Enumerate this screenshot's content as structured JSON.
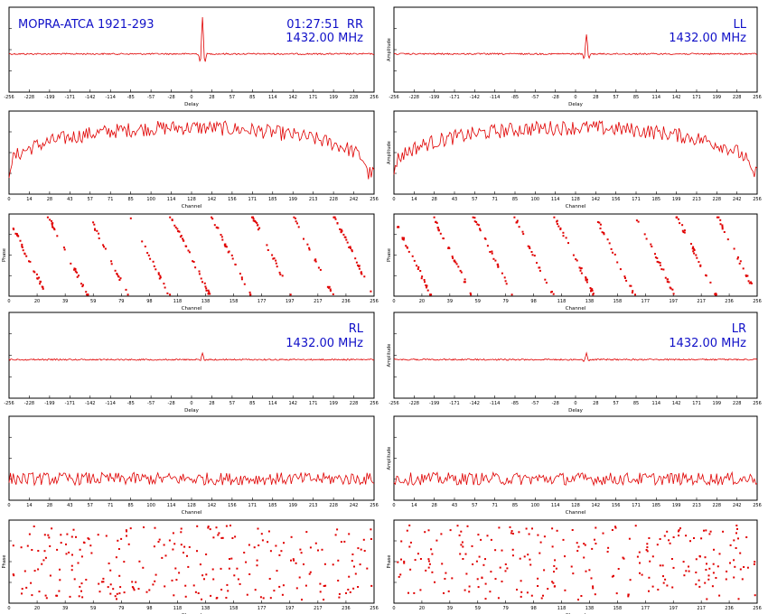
{
  "title": "MOPRA-ATCA 1921-293",
  "time": "01:27:51",
  "frequency": "1432.00 MHz",
  "colors": {
    "trace": "#e00000",
    "frame": "#000000",
    "label": "#1010c8"
  },
  "axis_labels": {
    "delay_x": "Delay",
    "channel_x": "Channel",
    "amplitude_y": "Amplitude",
    "phase_y": "Phase"
  },
  "chart_data": [
    {
      "type": "line",
      "kind": "delay",
      "polarization": "RR",
      "x_label": "Delay",
      "peak": "strong",
      "xlim": [
        -256,
        256
      ]
    },
    {
      "type": "line",
      "kind": "amplitude",
      "polarization": "RR",
      "x_label": "Channel",
      "level": "high",
      "ylim": [
        0,
        5
      ]
    },
    {
      "type": "scatter",
      "kind": "phase",
      "polarization": "RR",
      "x_label": "Channel",
      "wraps": 8,
      "ylim": [
        -180,
        180
      ]
    },
    {
      "type": "line",
      "kind": "delay",
      "polarization": "LL",
      "x_label": "Delay",
      "peak": "medium",
      "xlim": [
        -256,
        256
      ]
    },
    {
      "type": "line",
      "kind": "amplitude",
      "polarization": "LL",
      "x_label": "Channel",
      "level": "high",
      "ylim": [
        0,
        5
      ]
    },
    {
      "type": "scatter",
      "kind": "phase",
      "polarization": "LL",
      "x_label": "Channel",
      "wraps": 8,
      "ylim": [
        -180,
        180
      ]
    },
    {
      "type": "line",
      "kind": "delay",
      "polarization": "RL",
      "x_label": "Delay",
      "peak": "weak",
      "xlim": [
        -256,
        256
      ]
    },
    {
      "type": "line",
      "kind": "amplitude",
      "polarization": "RL",
      "x_label": "Channel",
      "level": "low",
      "ylim": [
        0,
        5
      ]
    },
    {
      "type": "scatter",
      "kind": "phase",
      "polarization": "RL",
      "x_label": "Channel",
      "wraps": 0,
      "ylim": [
        -180,
        180
      ]
    },
    {
      "type": "line",
      "kind": "delay",
      "polarization": "LR",
      "x_label": "Delay",
      "peak": "weak",
      "xlim": [
        -256,
        256
      ]
    },
    {
      "type": "line",
      "kind": "amplitude",
      "polarization": "LR",
      "x_label": "Channel",
      "level": "low",
      "ylim": [
        0,
        5
      ]
    },
    {
      "type": "scatter",
      "kind": "phase",
      "polarization": "LR",
      "x_label": "Channel",
      "wraps": 0,
      "ylim": [
        -180,
        180
      ]
    }
  ]
}
